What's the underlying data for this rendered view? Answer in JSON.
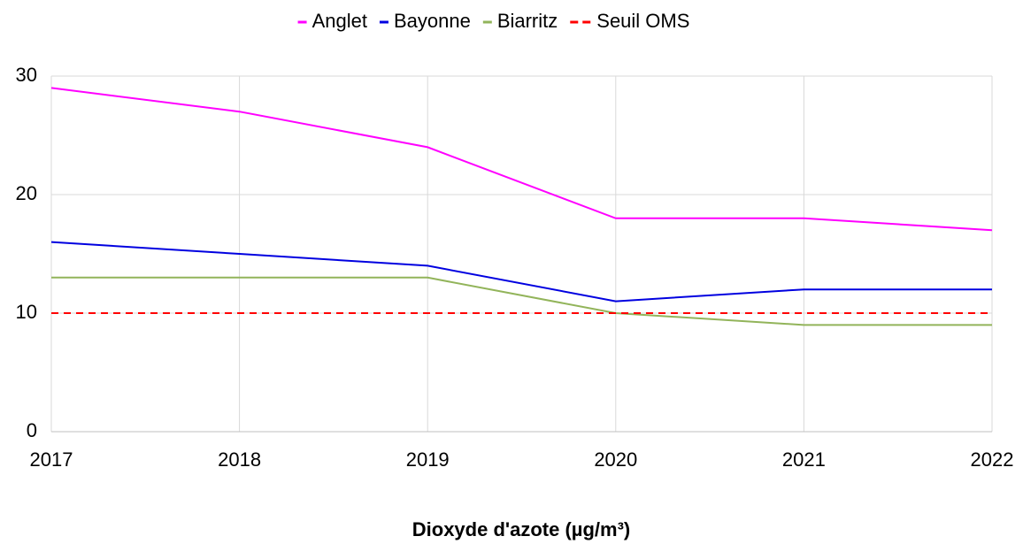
{
  "chart_data": {
    "type": "line",
    "x_label": "Dioxyde d'azote (µg/m³)",
    "x": [
      2017,
      2018,
      2019,
      2020,
      2021,
      2022
    ],
    "series": [
      {
        "name": "Anglet",
        "color": "#ff00ff",
        "values": [
          29,
          27,
          24,
          18,
          18,
          17
        ]
      },
      {
        "name": "Bayonne",
        "color": "#0000e0",
        "values": [
          16,
          15,
          14,
          11,
          12,
          12
        ]
      },
      {
        "name": "Biarritz",
        "color": "#92b45a",
        "values": [
          13,
          13,
          13,
          10,
          9,
          9
        ]
      },
      {
        "name": "Seuil OMS",
        "color": "#ff0000",
        "values": [
          10,
          10,
          10,
          10,
          10,
          10
        ],
        "dashed": true
      }
    ],
    "xlim": [
      2017,
      2022
    ],
    "xticks": [
      2017,
      2018,
      2019,
      2020,
      2021,
      2022
    ],
    "ylim": [
      0,
      30
    ],
    "yticks": [
      0,
      10,
      20,
      30
    ],
    "grid": true,
    "legend": "top"
  }
}
